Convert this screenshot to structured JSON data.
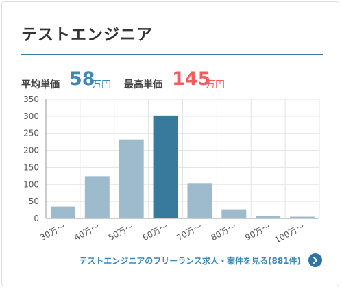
{
  "header": {
    "title": "テストエンジニア"
  },
  "stats": {
    "avg_label": "平均単価",
    "avg_value": "58",
    "avg_unit": "万円",
    "max_label": "最高単価",
    "max_value": "145",
    "max_unit": "万円"
  },
  "colors": {
    "accent": "#3b7aa0",
    "avg": "#3b88b5",
    "max": "#f25c5c",
    "bar": "#9ebbcd",
    "bar_highlight": "#377a9c"
  },
  "chart_data": {
    "type": "bar",
    "categories": [
      "30万～",
      "40万～",
      "50万～",
      "60万～",
      "70万～",
      "80万～",
      "90万～",
      "100万～"
    ],
    "values": [
      35,
      124,
      232,
      302,
      104,
      27,
      7,
      5
    ],
    "highlight_index": 3,
    "ylim": [
      0,
      350
    ],
    "yticks": [
      0,
      50,
      100,
      150,
      200,
      250,
      300,
      350
    ],
    "grid": true,
    "title": "",
    "xlabel": "",
    "ylabel": ""
  },
  "footer": {
    "link_text": "テストエンジニアのフリーランス求人・案件を見る(881件)"
  }
}
